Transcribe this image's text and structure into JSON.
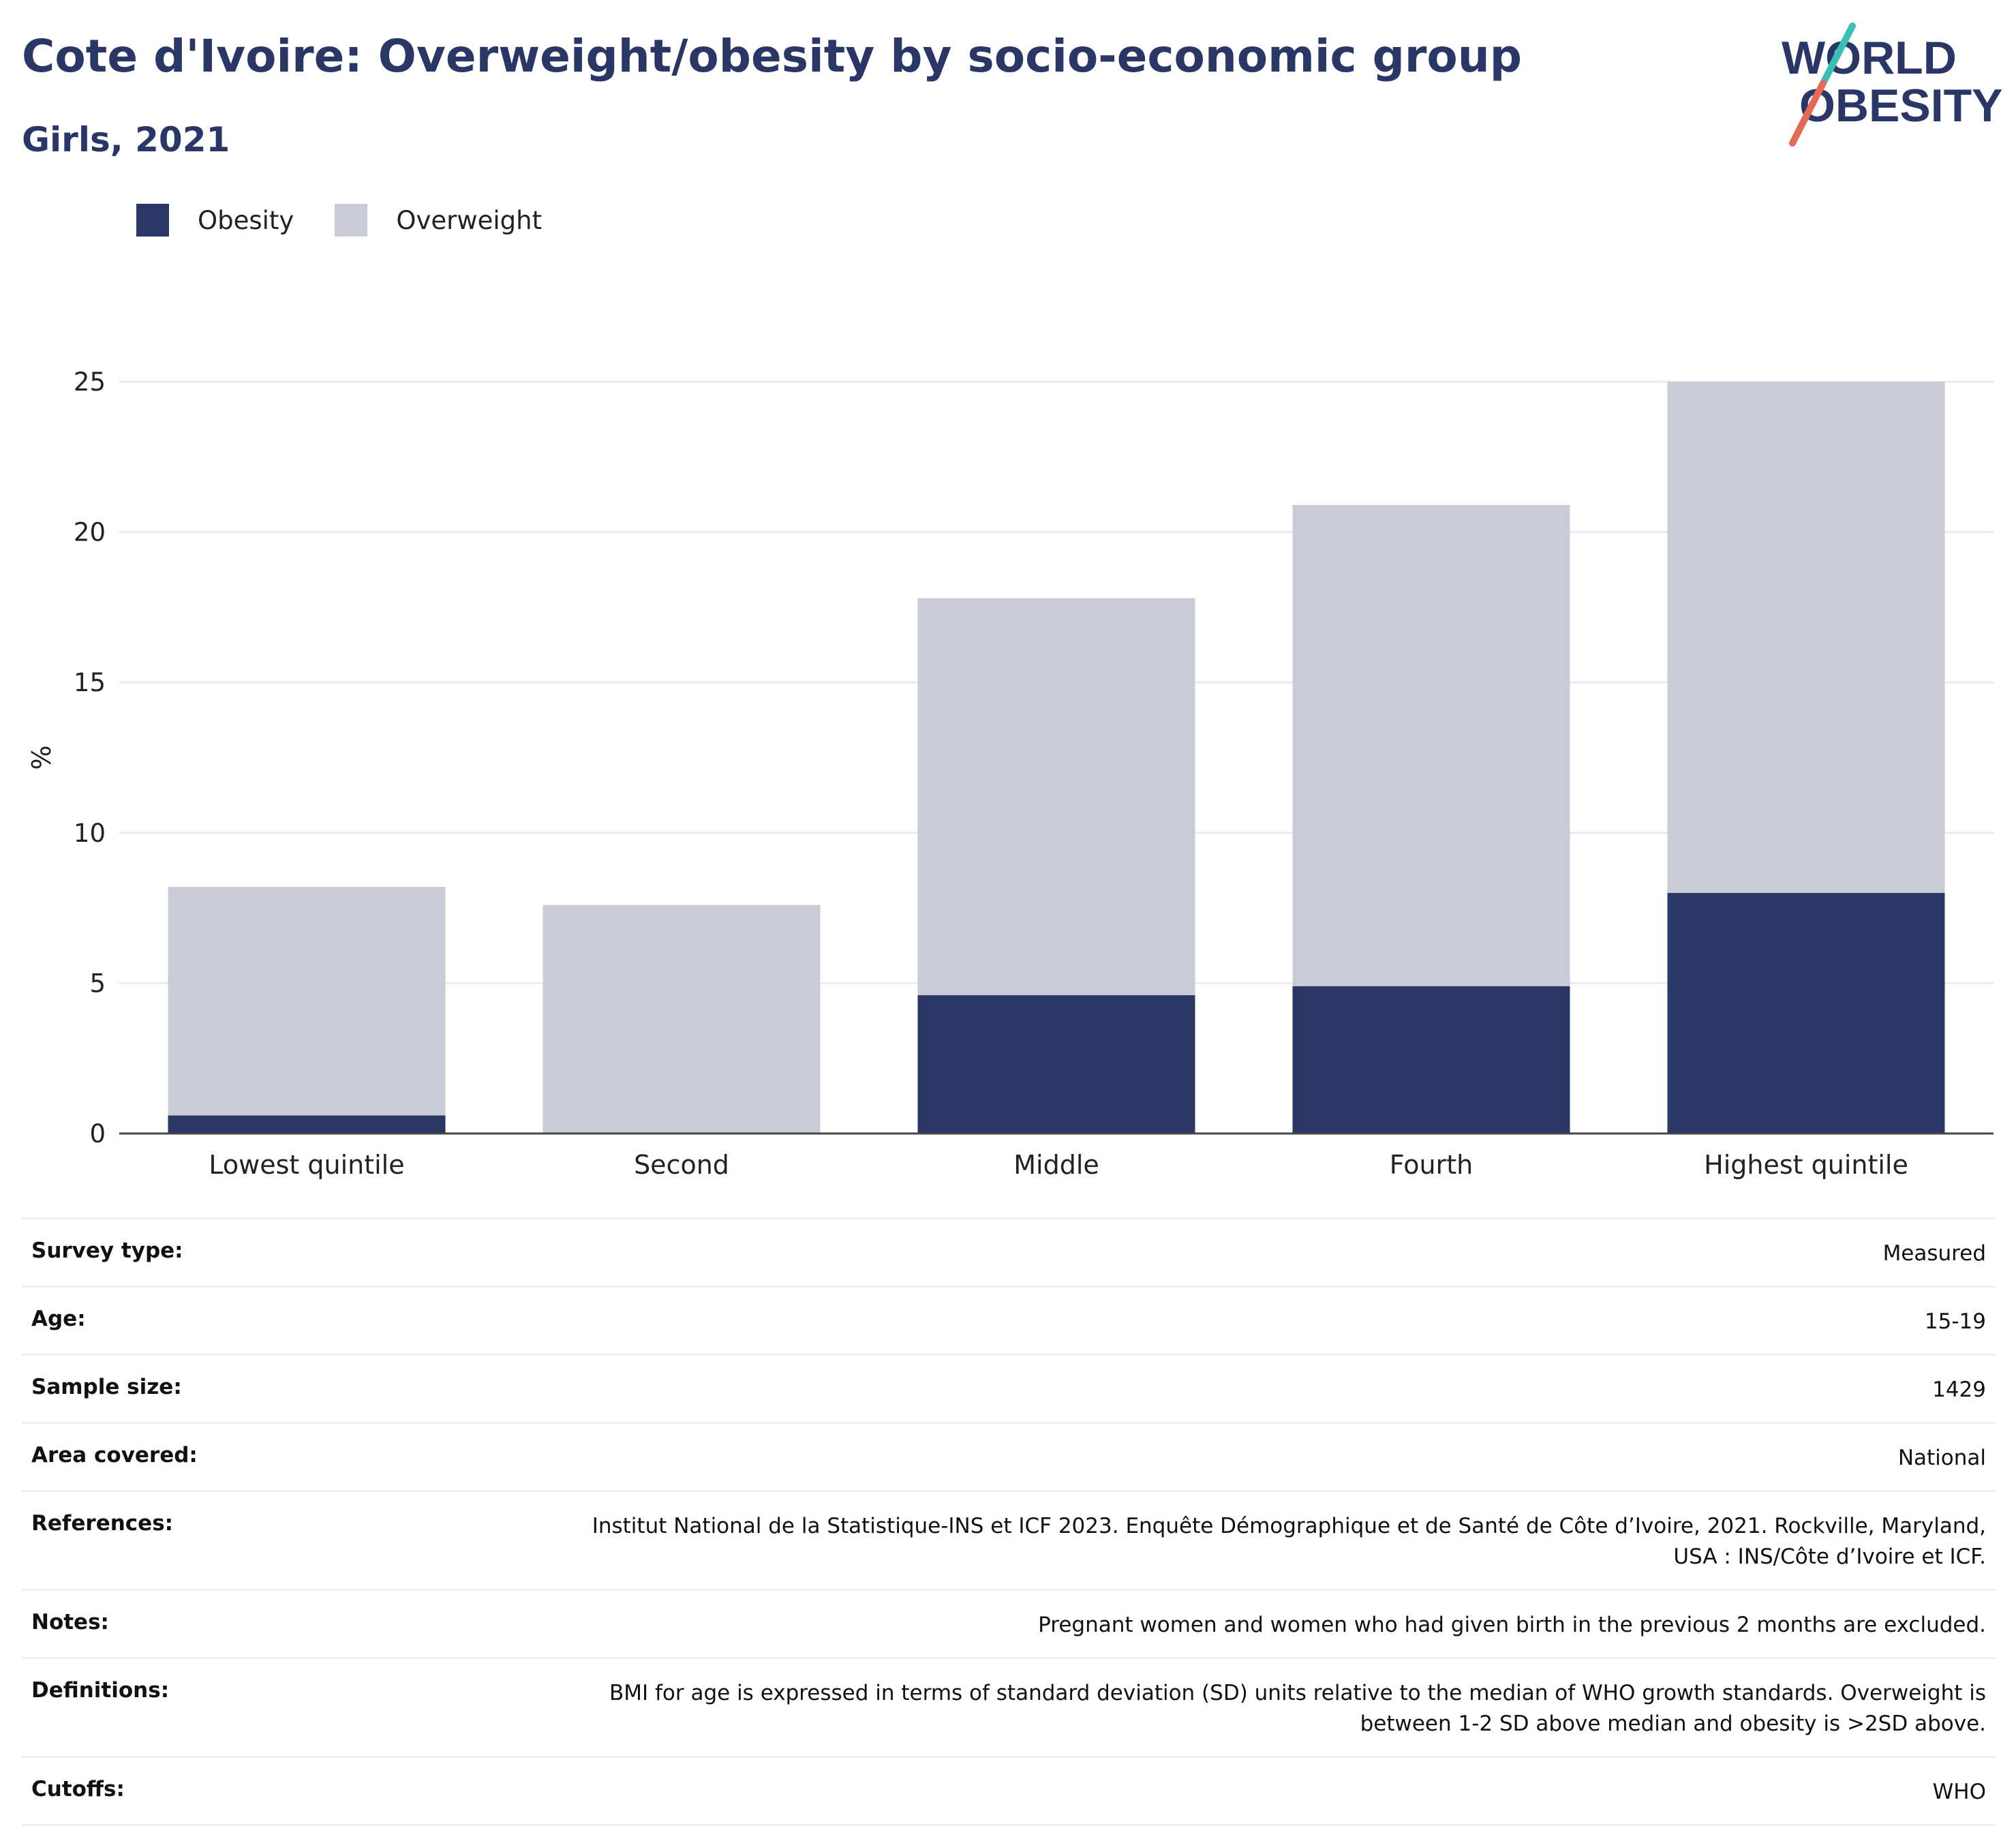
{
  "title": "Cote d'Ivoire: Overweight/obesity by socio-economic group",
  "subtitle": "Girls, 2021",
  "logo": {
    "line1": "WORLD",
    "line2": "OBESITY"
  },
  "legend": [
    {
      "label": "Obesity",
      "color": "#2a3664"
    },
    {
      "label": "Overweight",
      "color": "#c9ccd7"
    }
  ],
  "chart_data": {
    "type": "bar",
    "stacked": true,
    "categories": [
      "Lowest quintile",
      "Second",
      "Middle",
      "Fourth",
      "Highest quintile"
    ],
    "series": [
      {
        "name": "Obesity",
        "color": "#2a3664",
        "values": [
          0.6,
          0,
          4.6,
          4.9,
          8.0
        ]
      },
      {
        "name": "Overweight",
        "color": "#c9ccd7",
        "values": [
          7.6,
          7.6,
          13.2,
          16.0,
          17.0
        ]
      }
    ],
    "ylabel": "%",
    "xlabel": "",
    "ylim": [
      0,
      25
    ],
    "yticks": [
      0,
      5,
      10,
      15,
      20,
      25
    ],
    "grid": true
  },
  "info": [
    {
      "key": "Survey type:",
      "value": "Measured"
    },
    {
      "key": "Age:",
      "value": "15-19"
    },
    {
      "key": "Sample size:",
      "value": "1429"
    },
    {
      "key": "Area covered:",
      "value": "National"
    },
    {
      "key": "References:",
      "value": "Institut National de la Statistique-INS et ICF 2023. Enquête Démographique et de Santé de Côte d’Ivoire, 2021. Rockville, Maryland, USA : INS/Côte d’Ivoire et ICF."
    },
    {
      "key": "Notes:",
      "value": "Pregnant women and women who had given birth in the previous 2 months are excluded."
    },
    {
      "key": "Definitions:",
      "value": "BMI for age is expressed in terms of standard deviation (SD) units relative to the median of WHO growth standards. Overweight is between 1-2 SD above median and obesity is >2SD above."
    },
    {
      "key": "Cutoffs:",
      "value": "WHO"
    }
  ]
}
